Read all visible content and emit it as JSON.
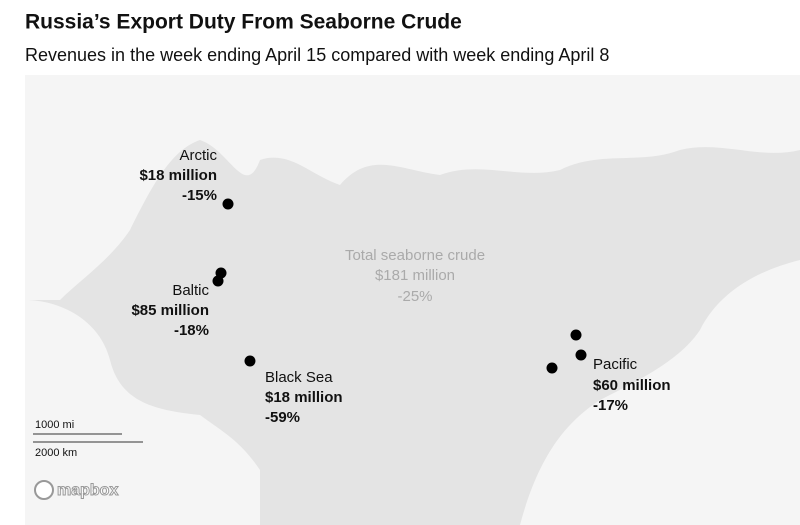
{
  "header": {
    "title": "Russia’s Export Duty From Seaborne Crude",
    "subtitle": "Revenues in the week ending April 15 compared with week ending April 8"
  },
  "regions": [
    {
      "name": "Arctic",
      "revenue": "$18 million",
      "change": "-15%"
    },
    {
      "name": "Baltic",
      "revenue": "$85 million",
      "change": "-18%"
    },
    {
      "name": "Black Sea",
      "revenue": "$18 million",
      "change": "-59%"
    },
    {
      "name": "Pacific",
      "revenue": "$60 million",
      "change": "-17%"
    }
  ],
  "total": {
    "name": "Total seaborne crude",
    "revenue": "$181 million",
    "change": "-25%"
  },
  "scale": {
    "miles": "1000 mi",
    "km": "2000 km"
  },
  "attribution": "mapbox"
}
